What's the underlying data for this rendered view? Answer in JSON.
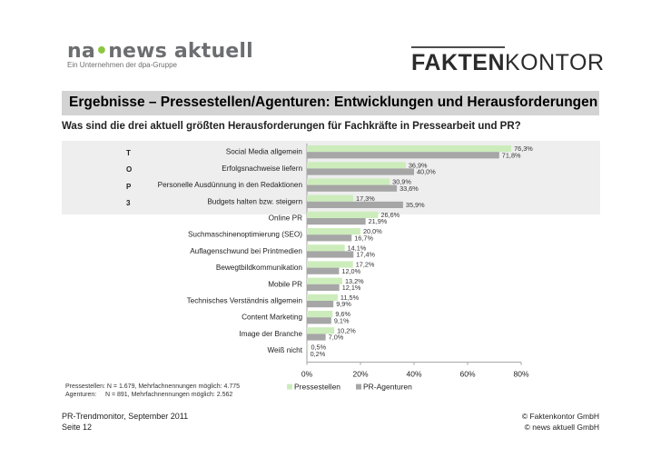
{
  "logo_left": {
    "brand_a": "na",
    "brand_dot": "•",
    "brand_b": "news aktuell",
    "subtitle": "Ein Unternehmen der dpa-Gruppe"
  },
  "logo_right": {
    "part1": "FAKTEN",
    "part2": "KONTOR"
  },
  "title": "Ergebnisse – Pressestellen/Agenturen: Entwicklungen und Herausforderungen",
  "question": "Was sind die drei aktuell größten Herausforderungen für Fachkräfte in Pressearbeit und PR?",
  "side_letters": [
    "T",
    "O",
    "P",
    "3"
  ],
  "chart_data": {
    "type": "bar",
    "orientation": "horizontal",
    "categories": [
      "Social Media allgemein",
      "Erfolgsnachweise liefern",
      "Personelle Ausdünnung in den Redaktionen",
      "Budgets halten bzw. steigern",
      "Online PR",
      "Suchmaschinenoptimierung (SEO)",
      "Auflagenschwund bei Printmedien",
      "Bewegtbildkommunikation",
      "Mobile PR",
      "Technisches Verständnis allgemein",
      "Content Marketing",
      "Image der Branche",
      "Weiß nicht"
    ],
    "series": [
      {
        "name": "Pressestellen",
        "color": "#ccedbb",
        "values": [
          76.3,
          36.9,
          30.9,
          17.3,
          26.6,
          20.0,
          14.1,
          17.2,
          13.2,
          11.5,
          9.6,
          10.2,
          0.5
        ],
        "labels": [
          "76,3%",
          "36,9%",
          "30,9%",
          "17,3%",
          "26,6%",
          "20,0%",
          "14,1%",
          "17,2%",
          "13,2%",
          "11,5%",
          "9,6%",
          "10,2%",
          "0,5%"
        ]
      },
      {
        "name": "PR-Agenturen",
        "color": "#a6a6a6",
        "values": [
          71.8,
          40.0,
          33.6,
          35.9,
          21.9,
          16.7,
          17.4,
          12.0,
          12.1,
          9.9,
          9.1,
          7.0,
          0.2
        ],
        "labels": [
          "71,8%",
          "40,0%",
          "33,6%",
          "35,9%",
          "21,9%",
          "16,7%",
          "17,4%",
          "12,0%",
          "12,1%",
          "9,9%",
          "9,1%",
          "7,0%",
          "0,2%"
        ]
      }
    ],
    "xlim": [
      0,
      80
    ],
    "xticks": [
      0,
      20,
      40,
      60,
      80
    ],
    "xtick_labels": [
      "0%",
      "20%",
      "40%",
      "60%",
      "80%"
    ],
    "legend": "bottom",
    "grid": false
  },
  "footnote": {
    "line1": "Pressestellen: N = 1.679, Mehrfachnennungen möglich: 4.775",
    "line2": "Agenturen:     N = 891, Mehrfachnennungen möglich: 2.562"
  },
  "footer_left": {
    "line1": "PR-Trendmonitor, September 2011",
    "line2": "Seite 12"
  },
  "footer_right": {
    "line1": "© Faktenkontor GmbH",
    "line2": "© news aktuell GmbH"
  }
}
